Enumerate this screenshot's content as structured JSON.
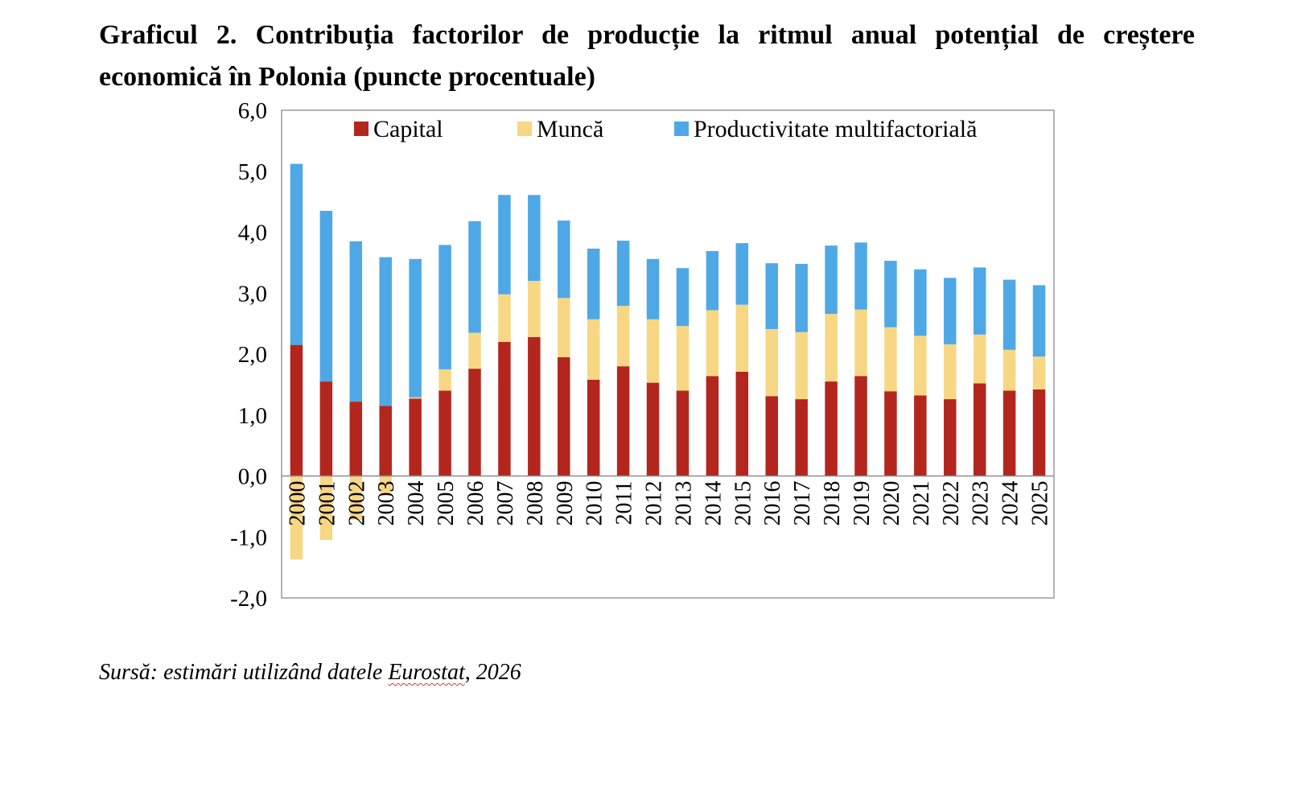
{
  "title": "Graficul 2. Contribuția factorilor de producție la ritmul anual potențial de creștere economică în Polonia (puncte procentuale)",
  "source": {
    "prefix": "Sursă: estimări utilizând datele ",
    "word": "Eurostat",
    "suffix": ", 2026"
  },
  "chart_data": {
    "type": "bar",
    "stacked": true,
    "categories": [
      "2000",
      "2001",
      "2002",
      "2003",
      "2004",
      "2005",
      "2006",
      "2007",
      "2008",
      "2009",
      "2010",
      "2011",
      "2012",
      "2013",
      "2014",
      "2015",
      "2016",
      "2017",
      "2018",
      "2019",
      "2020",
      "2021",
      "2022",
      "2023",
      "2024",
      "2025"
    ],
    "series": [
      {
        "name": "Capital",
        "color": "#b3261e",
        "values": [
          2.15,
          1.55,
          1.22,
          1.15,
          1.27,
          1.4,
          1.76,
          2.2,
          2.28,
          1.95,
          1.58,
          1.8,
          1.53,
          1.4,
          1.64,
          1.71,
          1.31,
          1.26,
          1.55,
          1.64,
          1.39,
          1.32,
          1.26,
          1.52,
          1.4,
          1.42
        ]
      },
      {
        "name": "Muncă",
        "color": "#f7d783",
        "values": [
          -1.37,
          -1.05,
          -0.72,
          -0.28,
          0.02,
          0.35,
          0.59,
          0.78,
          0.92,
          0.97,
          0.99,
          0.99,
          1.04,
          1.06,
          1.08,
          1.1,
          1.1,
          1.1,
          1.11,
          1.09,
          1.05,
          0.98,
          0.9,
          0.8,
          0.67,
          0.54
        ]
      },
      {
        "name": "Productivitate multifactorială",
        "color": "#4fa8e6",
        "values": [
          2.97,
          2.8,
          2.63,
          2.44,
          2.27,
          2.04,
          1.83,
          1.63,
          1.41,
          1.27,
          1.16,
          1.07,
          0.99,
          0.95,
          0.97,
          1.01,
          1.08,
          1.12,
          1.12,
          1.1,
          1.09,
          1.09,
          1.09,
          1.1,
          1.15,
          1.17
        ]
      }
    ],
    "y_tick_labels": [
      "6,0",
      "5,0",
      "4,0",
      "3,0",
      "2,0",
      "1,0",
      "0,0",
      "-1,0",
      "-2,0"
    ],
    "ylim": [
      -2,
      6
    ],
    "legend_position": "top-inside",
    "grid": false,
    "title": "",
    "xlabel": "",
    "ylabel": ""
  }
}
